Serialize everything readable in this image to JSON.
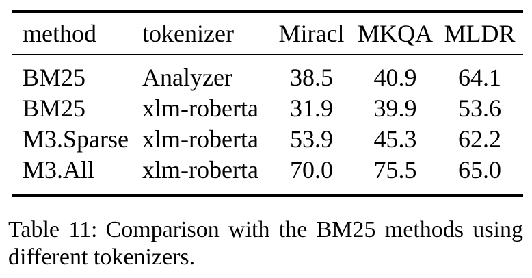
{
  "table": {
    "columns": [
      {
        "label": "method"
      },
      {
        "label": "tokenizer"
      },
      {
        "label": "Miracl"
      },
      {
        "label": "MKQA"
      },
      {
        "label": "MLDR"
      }
    ],
    "rows": [
      [
        "BM25",
        "Analyzer",
        "38.5",
        "40.9",
        "64.1"
      ],
      [
        "BM25",
        "xlm-roberta",
        "31.9",
        "39.9",
        "53.6"
      ],
      [
        "M3.Sparse",
        "xlm-roberta",
        "53.9",
        "45.3",
        "62.2"
      ],
      [
        "M3.All",
        "xlm-roberta",
        "70.0",
        "75.5",
        "65.0"
      ]
    ]
  },
  "caption": {
    "label": "Table 11:",
    "text": "Comparison with the BM25 methods using different tokenizers."
  },
  "colors": {
    "text": "#000000",
    "background": "#ffffff",
    "rule": "#000000"
  },
  "chart_data": {
    "type": "table",
    "title": "Table 11: Comparison with the BM25 methods using different tokenizers.",
    "columns": [
      "method",
      "tokenizer",
      "Miracl",
      "MKQA",
      "MLDR"
    ],
    "rows": [
      {
        "method": "BM25",
        "tokenizer": "Analyzer",
        "Miracl": 38.5,
        "MKQA": 40.9,
        "MLDR": 64.1
      },
      {
        "method": "BM25",
        "tokenizer": "xlm-roberta",
        "Miracl": 31.9,
        "MKQA": 39.9,
        "MLDR": 53.6
      },
      {
        "method": "M3.Sparse",
        "tokenizer": "xlm-roberta",
        "Miracl": 53.9,
        "MKQA": 45.3,
        "MLDR": 62.2
      },
      {
        "method": "M3.All",
        "tokenizer": "xlm-roberta",
        "Miracl": 70.0,
        "MKQA": 75.5,
        "MLDR": 65.0
      }
    ]
  }
}
